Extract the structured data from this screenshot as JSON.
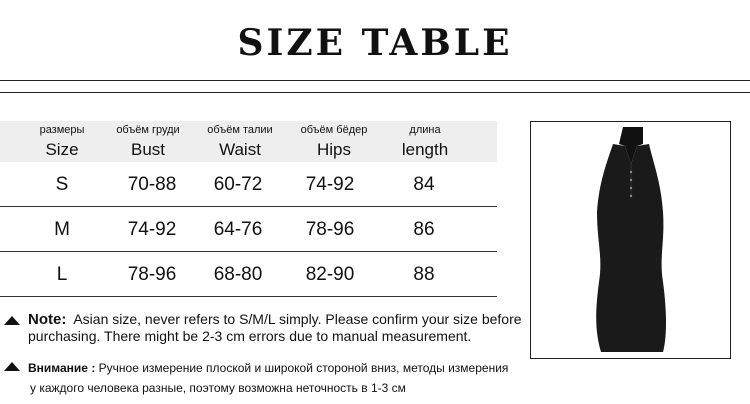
{
  "title": "SIZE TABLE",
  "table": {
    "headers": [
      {
        "ru": "размеры",
        "en": "Size"
      },
      {
        "ru": "объём груди",
        "en": "Bust"
      },
      {
        "ru": "объём талии",
        "en": "Waist"
      },
      {
        "ru": "объём бёдер",
        "en": "Hips"
      },
      {
        "ru": "длина",
        "en": "length"
      }
    ],
    "rows": [
      [
        "S",
        "70-88",
        "60-72",
        "74-92",
        "84"
      ],
      [
        "M",
        "74-92",
        "64-76",
        "78-96",
        "86"
      ],
      [
        "L",
        "78-96",
        "68-80",
        "82-90",
        "88"
      ]
    ]
  },
  "note": {
    "label": "Note:",
    "line1": "Asian size, never refers to S/M/L simply. Please confirm your size before",
    "line2": "purchasing. There might be 2-3 cm errors due to manual measurement."
  },
  "warning": {
    "label": "Внимание :",
    "line1": "Ручное измерение плоской и широкой стороной вниз, методы измерения",
    "line2": "у каждого человека разные, поэтому возможна неточность в 1-3 см"
  },
  "icons": {
    "bullet": "triangle-up-icon"
  },
  "image": "black-sleeveless-halter-dress"
}
